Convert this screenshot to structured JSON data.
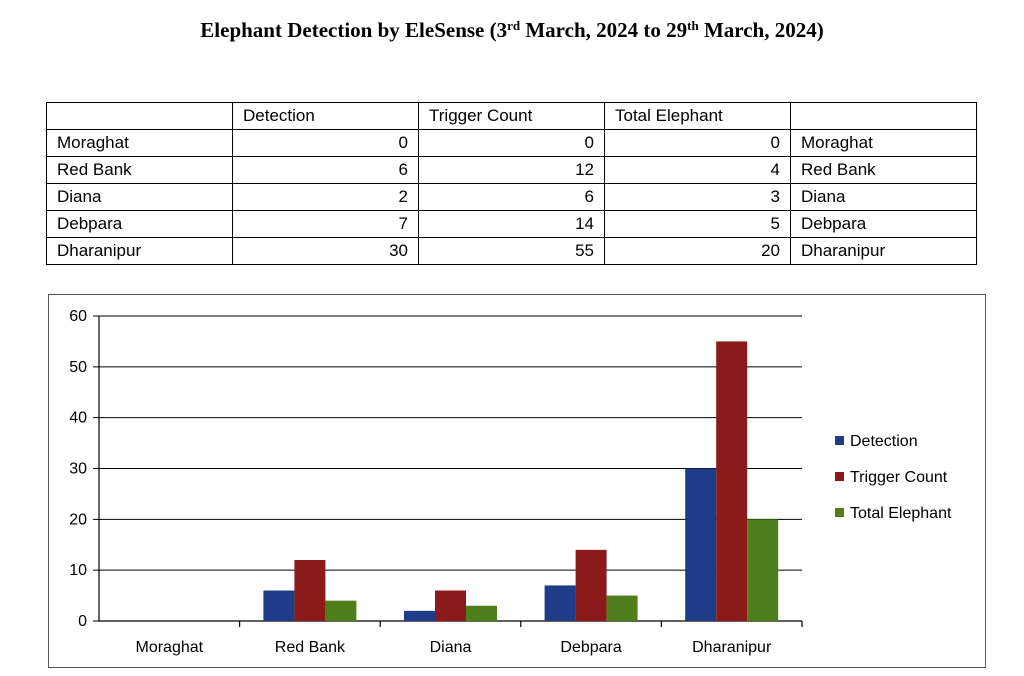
{
  "title": {
    "part1": "Elephant Detection by EleSense (3",
    "sup1": "rd",
    "part2": " March, 2024 to 29",
    "sup2": "th",
    "part3": " March, 2024)"
  },
  "table": {
    "headers": [
      "",
      "Detection",
      "Trigger Count",
      "Total Elephant",
      ""
    ],
    "rows": [
      [
        "Moraghat",
        "0",
        "0",
        "0",
        "Moraghat"
      ],
      [
        "Red Bank",
        "6",
        "12",
        "4",
        "Red Bank"
      ],
      [
        "Diana",
        "2",
        "6",
        "3",
        "Diana"
      ],
      [
        "Debpara",
        "7",
        "14",
        "5",
        "Debpara"
      ],
      [
        "Dharanipur",
        "30",
        "55",
        "20",
        "Dharanipur"
      ]
    ]
  },
  "chart_data": {
    "type": "bar",
    "categories": [
      "Moraghat",
      "Red Bank",
      "Diana",
      "Debpara",
      "Dharanipur"
    ],
    "series": [
      {
        "name": "Detection",
        "values": [
          0,
          6,
          2,
          7,
          30
        ],
        "color": "#1f3c88"
      },
      {
        "name": "Trigger Count",
        "values": [
          0,
          12,
          6,
          14,
          55
        ],
        "color": "#8b1a1a"
      },
      {
        "name": "Total Elephant",
        "values": [
          0,
          4,
          3,
          5,
          20
        ],
        "color": "#4f7f1c"
      }
    ],
    "ylim": [
      0,
      60
    ],
    "yticks": [
      "0",
      "10",
      "20",
      "30",
      "40",
      "50",
      "60"
    ],
    "grid": true,
    "legend": "right"
  }
}
